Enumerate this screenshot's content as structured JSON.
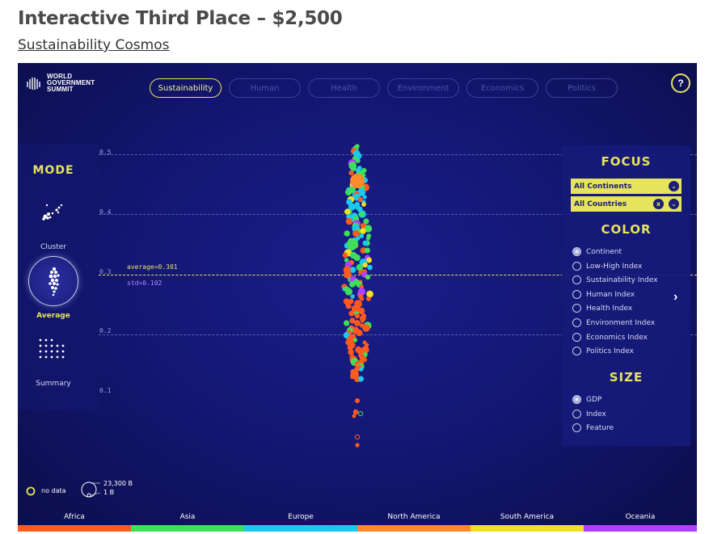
{
  "page": {
    "title": "Interactive Third Place – $2,500",
    "link": "Sustainability Cosmos"
  },
  "app": {
    "logo": {
      "line1": "WORLD",
      "line2": "GOVERNMENT",
      "line3": "SUMMIT"
    },
    "tabs": [
      {
        "label": "Sustainability",
        "active": true
      },
      {
        "label": "Human",
        "active": false
      },
      {
        "label": "Health",
        "active": false
      },
      {
        "label": "Environment",
        "active": false
      },
      {
        "label": "Economics",
        "active": false
      },
      {
        "label": "Politics",
        "active": false
      }
    ],
    "help_label": "?"
  },
  "mode": {
    "title": "MODE",
    "items": [
      {
        "label": "Cluster",
        "active": false,
        "icon": "cluster-icon"
      },
      {
        "label": "Average",
        "active": true,
        "icon": "average-icon"
      },
      {
        "label": "Summary",
        "active": false,
        "icon": "summary-icon"
      }
    ]
  },
  "axis": {
    "ticks": [
      "0.5",
      "0.4",
      "0.3",
      "0.2",
      "0.1"
    ],
    "average_label": "average=0.301",
    "std_label": "std=0.102"
  },
  "focus": {
    "title": "FOCUS",
    "continent_select": "All Continents",
    "country_select": "All Countries",
    "clear_label": "x",
    "chevron_label": "⌄"
  },
  "color": {
    "title": "COLOR",
    "options": [
      {
        "label": "Continent",
        "selected": true
      },
      {
        "label": "Low-High Index",
        "selected": false
      },
      {
        "label": "Sustainability Index",
        "selected": false
      },
      {
        "label": "Human Index",
        "selected": false
      },
      {
        "label": "Health Index",
        "selected": false
      },
      {
        "label": "Environment Index",
        "selected": false
      },
      {
        "label": "Economics Index",
        "selected": false
      },
      {
        "label": "Politics Index",
        "selected": false
      }
    ]
  },
  "size": {
    "title": "SIZE",
    "options": [
      {
        "label": "GDP",
        "selected": true
      },
      {
        "label": "Index",
        "selected": false
      },
      {
        "label": "Feature",
        "selected": false
      }
    ]
  },
  "panel_toggle": "›",
  "legend": {
    "no_data": "no data",
    "size_max": "23,300 B",
    "size_min": "1 B"
  },
  "continents": [
    {
      "label": "Africa",
      "color": "#ff5a1f"
    },
    {
      "label": "Asia",
      "color": "#3ee05a"
    },
    {
      "label": "Europe",
      "color": "#1ac8f0"
    },
    {
      "label": "North America",
      "color": "#ff8a2a"
    },
    {
      "label": "South America",
      "color": "#f0e020"
    },
    {
      "label": "Oceania",
      "color": "#b040ff"
    }
  ],
  "colors": {
    "accent": "#e6e35c",
    "background": "#141775"
  }
}
